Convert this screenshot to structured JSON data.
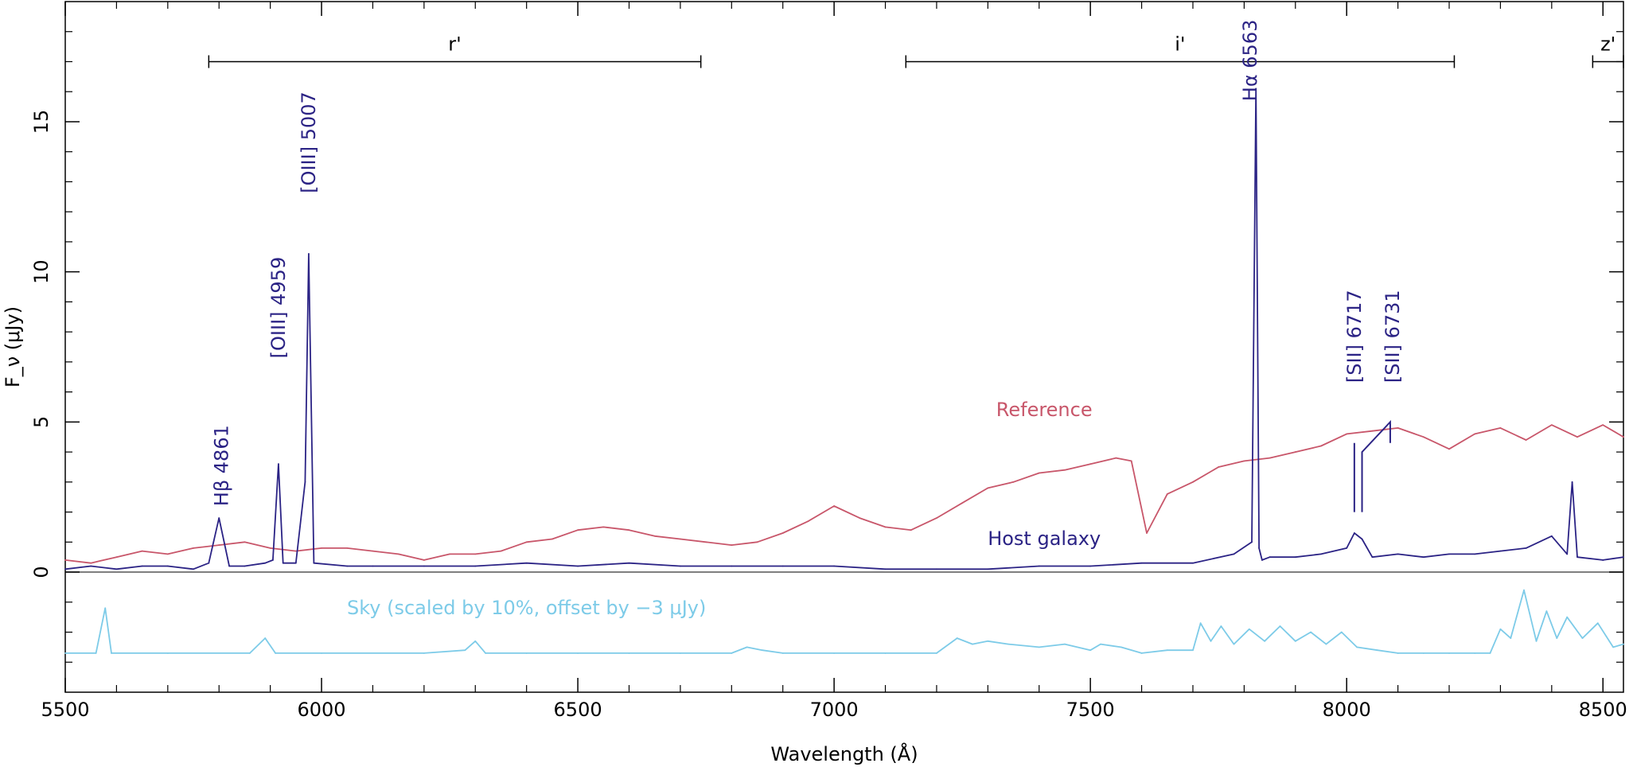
{
  "chart_data": {
    "type": "line",
    "xlabel": "Wavelength (Å)",
    "ylabel": "F_ν (μJy)",
    "xlim": [
      5500,
      8540
    ],
    "ylim": [
      -4,
      19
    ],
    "grid": false,
    "x_ticks": [
      5500,
      6000,
      6500,
      7000,
      7500,
      8000,
      8500
    ],
    "x_tick_labels": [
      "5500",
      "6000",
      "6500",
      "7000",
      "7500",
      "8000",
      "8500"
    ],
    "y_ticks": [
      0,
      5,
      10,
      15
    ],
    "y_tick_labels": [
      "0",
      "5",
      "10",
      "15"
    ],
    "zero_line": 0,
    "colors": {
      "axes": "#000000",
      "reference": "#c8566a",
      "host": "#2b2385",
      "sky": "#7dcbe8",
      "lines": "#2b2385"
    },
    "filters": [
      {
        "label": "r'",
        "x0": 5780,
        "x1": 6740,
        "y": 17
      },
      {
        "label": "i'",
        "x0": 7140,
        "x1": 8210,
        "y": 17
      },
      {
        "label": "z'",
        "x0": 8480,
        "x1": 8540,
        "y": 17
      }
    ],
    "series_labels": {
      "reference": "Reference",
      "host": "Host galaxy",
      "sky": "Sky (scaled by 10%, offset by −3 μJy)"
    },
    "series": [
      {
        "name": "Reference",
        "x": [
          5500,
          5550,
          5600,
          5650,
          5700,
          5750,
          5800,
          5850,
          5900,
          5950,
          6000,
          6050,
          6100,
          6150,
          6200,
          6250,
          6300,
          6350,
          6400,
          6450,
          6500,
          6550,
          6600,
          6650,
          6700,
          6750,
          6800,
          6850,
          6900,
          6950,
          7000,
          7050,
          7100,
          7150,
          7200,
          7250,
          7300,
          7350,
          7400,
          7450,
          7500,
          7550,
          7580,
          7610,
          7650,
          7700,
          7750,
          7800,
          7850,
          7900,
          7950,
          8000,
          8050,
          8100,
          8150,
          8200,
          8250,
          8300,
          8350,
          8400,
          8450,
          8500,
          8540
        ],
        "y": [
          0.4,
          0.3,
          0.5,
          0.7,
          0.6,
          0.8,
          0.9,
          1.0,
          0.8,
          0.7,
          0.8,
          0.8,
          0.7,
          0.6,
          0.4,
          0.6,
          0.6,
          0.7,
          1.0,
          1.1,
          1.4,
          1.5,
          1.4,
          1.2,
          1.1,
          1.0,
          0.9,
          1.0,
          1.3,
          1.7,
          2.2,
          1.8,
          1.5,
          1.4,
          1.8,
          2.3,
          2.8,
          3.0,
          3.3,
          3.4,
          3.6,
          3.8,
          3.7,
          1.3,
          2.6,
          3.0,
          3.5,
          3.7,
          3.8,
          4.0,
          4.2,
          4.6,
          4.7,
          4.8,
          4.5,
          4.1,
          4.6,
          4.8,
          4.4,
          4.9,
          4.5,
          4.9,
          4.5
        ]
      },
      {
        "name": "Host galaxy",
        "x": [
          5500,
          5550,
          5600,
          5650,
          5700,
          5750,
          5780,
          5800,
          5820,
          5850,
          5890,
          5905,
          5916,
          5925,
          5950,
          5968,
          5975,
          5985,
          6050,
          6100,
          6200,
          6300,
          6400,
          6500,
          6600,
          6700,
          6800,
          6900,
          7000,
          7100,
          7200,
          7300,
          7400,
          7500,
          7600,
          7700,
          7780,
          7815,
          7823,
          7829,
          7835,
          7850,
          7900,
          7950,
          8000,
          8015,
          8030,
          8050,
          8100,
          8150,
          8200,
          8250,
          8300,
          8350,
          8400,
          8430,
          8440,
          8450,
          8500,
          8540
        ],
        "y": [
          0.1,
          0.2,
          0.1,
          0.2,
          0.2,
          0.1,
          0.3,
          1.8,
          0.2,
          0.2,
          0.3,
          0.4,
          3.6,
          0.3,
          0.3,
          3.0,
          10.6,
          0.3,
          0.2,
          0.2,
          0.2,
          0.2,
          0.3,
          0.2,
          0.3,
          0.2,
          0.2,
          0.2,
          0.2,
          0.1,
          0.1,
          0.1,
          0.2,
          0.2,
          0.3,
          0.3,
          0.6,
          1.0,
          16.1,
          0.8,
          0.4,
          0.5,
          0.5,
          0.6,
          0.8,
          1.3,
          1.1,
          0.5,
          0.6,
          0.5,
          0.6,
          0.6,
          0.7,
          0.8,
          1.2,
          0.6,
          3.0,
          0.5,
          0.4,
          0.5
        ]
      },
      {
        "name": "Sky",
        "x": [
          5500,
          5560,
          5578,
          5590,
          5700,
          5860,
          5890,
          5910,
          6000,
          6200,
          6280,
          6300,
          6320,
          6400,
          6500,
          6600,
          6700,
          6800,
          6830,
          6860,
          6900,
          7000,
          7100,
          7200,
          7240,
          7270,
          7300,
          7340,
          7400,
          7450,
          7500,
          7520,
          7560,
          7600,
          7650,
          7700,
          7715,
          7735,
          7755,
          7780,
          7810,
          7840,
          7870,
          7900,
          7930,
          7960,
          7990,
          8020,
          8060,
          8100,
          8150,
          8200,
          8250,
          8280,
          8300,
          8320,
          8346,
          8370,
          8390,
          8410,
          8430,
          8460,
          8490,
          8520,
          8540
        ],
        "y": [
          -2.7,
          -2.7,
          -1.2,
          -2.7,
          -2.7,
          -2.7,
          -2.2,
          -2.7,
          -2.7,
          -2.7,
          -2.6,
          -2.3,
          -2.7,
          -2.7,
          -2.7,
          -2.7,
          -2.7,
          -2.7,
          -2.5,
          -2.6,
          -2.7,
          -2.7,
          -2.7,
          -2.7,
          -2.2,
          -2.4,
          -2.3,
          -2.4,
          -2.5,
          -2.4,
          -2.6,
          -2.4,
          -2.5,
          -2.7,
          -2.6,
          -2.6,
          -1.7,
          -2.3,
          -1.8,
          -2.4,
          -1.9,
          -2.3,
          -1.8,
          -2.3,
          -2.0,
          -2.4,
          -2.0,
          -2.5,
          -2.6,
          -2.7,
          -2.7,
          -2.7,
          -2.7,
          -2.7,
          -1.9,
          -2.2,
          -0.6,
          -2.3,
          -1.3,
          -2.2,
          -1.5,
          -2.2,
          -1.7,
          -2.5,
          -2.4
        ]
      }
    ],
    "annotations": [
      {
        "label": "Hβ 4861",
        "x": 5805,
        "y_tip": 1.9
      },
      {
        "label": "[OIII] 4959",
        "x": 5916,
        "y_tip": 3.7
      },
      {
        "label": "[OIII] 5007",
        "x": 5975,
        "y_tip": 10.7
      },
      {
        "label": "Hα 6563",
        "x": 7823,
        "y_tip": 16.1
      },
      {
        "label": "[SII] 6717",
        "x": 8015,
        "y_tip": 2.0
      },
      {
        "label": "[SII] 6731",
        "x": 8030,
        "y_tip": 2.0
      }
    ]
  }
}
